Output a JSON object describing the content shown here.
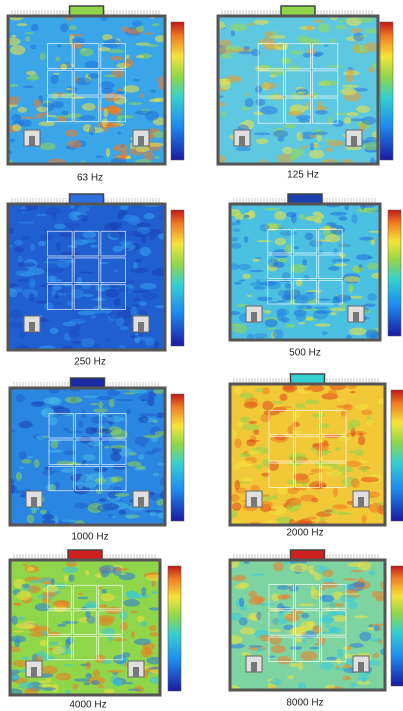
{
  "panels": [
    {
      "label": "63 Hz"
    },
    {
      "label": "125 Hz"
    },
    {
      "label": "250 Hz"
    },
    {
      "label": "500 Hz"
    },
    {
      "label": "1000 Hz"
    },
    {
      "label": "2000 Hz"
    },
    {
      "label": "4000 Hz"
    },
    {
      "label": "8000 Hz"
    }
  ]
}
